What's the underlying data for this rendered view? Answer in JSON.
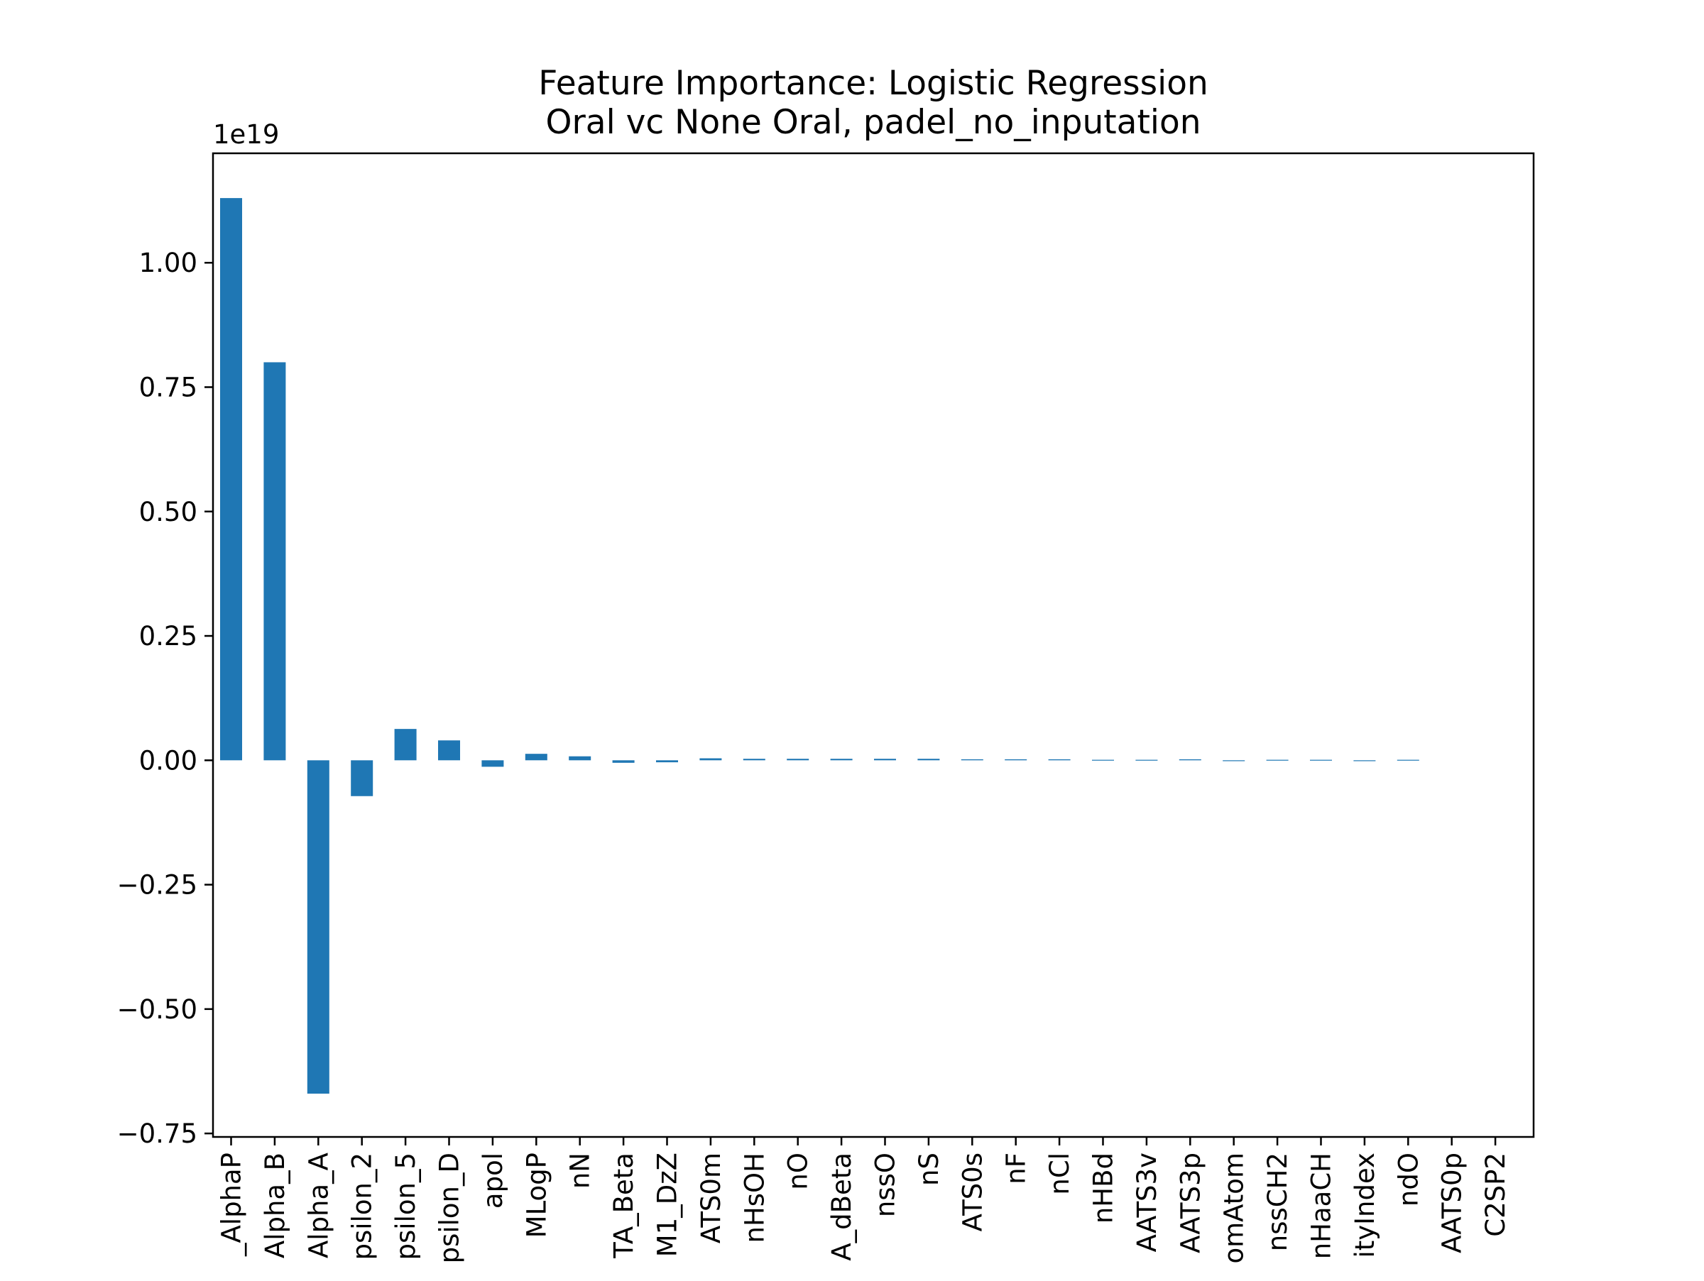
{
  "chart_data": {
    "type": "bar",
    "title": "Feature Importance: Logistic Regression",
    "subtitle": "Oral vc None Oral, padel_no_inputation",
    "xlabel": "",
    "ylabel": "",
    "y_offset_label": "1e19",
    "y_scale": 1e+19,
    "ylim": [
      -0.757,
      1.22
    ],
    "yticks": [
      -0.75,
      -0.5,
      -0.25,
      0.0,
      0.25,
      0.5,
      0.75,
      1.0
    ],
    "ytick_labels": [
      "−0.75",
      "−0.50",
      "−0.25",
      "0.00",
      "0.25",
      "0.50",
      "0.75",
      "1.00"
    ],
    "grid": false,
    "legend": "none",
    "bar_color": "#1f77b4",
    "categories": [
      "_AlphaP",
      "Alpha_B",
      "Alpha_A",
      "psilon_2",
      "psilon_5",
      "psilon_D",
      "apol",
      "MLogP",
      "nN",
      "TA_Beta",
      "M1_DzZ",
      "ATS0m",
      "nHsOH",
      "nO",
      "A_dBeta",
      "nssO",
      "nS",
      "ATS0s",
      "nF",
      "nCl",
      "nHBd",
      "AATS3v",
      "AATS3p",
      "omAtom",
      "nssCH2",
      "nHaaCH",
      "ityIndex",
      "ndO",
      "AATS0p",
      "C2SP2"
    ],
    "values": [
      1.13,
      0.8,
      -0.67,
      -0.072,
      0.063,
      0.04,
      -0.013,
      0.013,
      0.008,
      -0.005,
      -0.004,
      0.004,
      0.003,
      0.003,
      0.003,
      0.003,
      0.003,
      0.002,
      0.002,
      0.002,
      0.001,
      0.001,
      0.002,
      -0.001,
      0.001,
      0.001,
      -0.001,
      0.001,
      0.0,
      0.0
    ]
  }
}
